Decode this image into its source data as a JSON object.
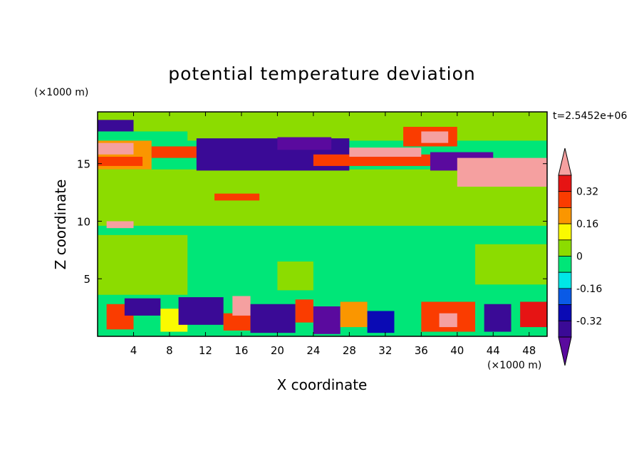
{
  "chart_data": {
    "type": "heatmap",
    "title": "potential temperature deviation",
    "xlabel": "X coordinate",
    "ylabel": "Z coordinate",
    "x_unit": "(×1000 m)",
    "y_unit": "(×1000 m)",
    "time_label": "t=2.5452e+06",
    "xlim": [
      0,
      50
    ],
    "ylim": [
      0,
      19.5
    ],
    "x_ticks": [
      4,
      8,
      12,
      16,
      20,
      24,
      28,
      32,
      36,
      40,
      44,
      48
    ],
    "y_ticks": [
      5,
      10,
      15
    ],
    "colorbar": {
      "tick_labels": [
        "0.32",
        "0.16",
        "0",
        "-0.16",
        "-0.32"
      ],
      "tick_values": [
        0.32,
        0.16,
        0,
        -0.16,
        -0.32
      ],
      "levels": [
        -0.4,
        -0.32,
        -0.24,
        -0.16,
        -0.08,
        0,
        0.08,
        0.16,
        0.24,
        0.32,
        0.4
      ],
      "colors": [
        "#5a0a9e",
        "#3a0a96",
        "#0a0ab4",
        "#0a5ae6",
        "#00e6e6",
        "#00e678",
        "#8cdc00",
        "#fafa00",
        "#fa9600",
        "#fa3c00",
        "#e61414",
        "#f5a0a0"
      ]
    },
    "field_regions": [
      {
        "x0": 0,
        "x1": 50,
        "y0": 0,
        "y1": 19.5,
        "value": -0.02
      },
      {
        "x0": 0,
        "x1": 50,
        "y0": 17.8,
        "y1": 19.5,
        "value": 0.05
      },
      {
        "x0": 10,
        "x1": 50,
        "y0": 17.0,
        "y1": 19.5,
        "value": 0.05
      },
      {
        "x0": 0,
        "x1": 50,
        "y0": 9.6,
        "y1": 14.5,
        "value": 0.05
      },
      {
        "x0": 0,
        "x1": 50,
        "y0": 9.2,
        "y1": 9.6,
        "value": -0.07
      },
      {
        "x0": 0,
        "x1": 10,
        "y0": 3.6,
        "y1": 8.8,
        "value": 0.05
      },
      {
        "x0": 20,
        "x1": 24,
        "y0": 4.0,
        "y1": 6.5,
        "value": 0.05
      },
      {
        "x0": 42,
        "x1": 50,
        "y0": 4.5,
        "y1": 8.0,
        "value": 0.05
      },
      {
        "x0": 0,
        "x1": 4,
        "y0": 17.8,
        "y1": 18.8,
        "value": -0.35
      },
      {
        "x0": 0,
        "x1": 6,
        "y0": 14.5,
        "y1": 17.0,
        "value": 0.2
      },
      {
        "x0": 0,
        "x1": 4,
        "y0": 15.8,
        "y1": 16.8,
        "value": 0.45
      },
      {
        "x0": 0,
        "x1": 5,
        "y0": 14.8,
        "y1": 15.6,
        "value": 0.3
      },
      {
        "x0": 6,
        "x1": 12,
        "y0": 15.5,
        "y1": 16.5,
        "value": 0.25
      },
      {
        "x0": 11,
        "x1": 28,
        "y0": 14.4,
        "y1": 17.2,
        "value": -0.34
      },
      {
        "x0": 20,
        "x1": 26,
        "y0": 16.2,
        "y1": 17.3,
        "value": -0.42
      },
      {
        "x0": 24,
        "x1": 38,
        "y0": 14.8,
        "y1": 15.8,
        "value": 0.3
      },
      {
        "x0": 28,
        "x1": 36,
        "y0": 15.6,
        "y1": 16.4,
        "value": 0.45
      },
      {
        "x0": 34,
        "x1": 40,
        "y0": 16.5,
        "y1": 18.2,
        "value": 0.3
      },
      {
        "x0": 36,
        "x1": 39,
        "y0": 16.8,
        "y1": 17.8,
        "value": 0.45
      },
      {
        "x0": 37,
        "x1": 44,
        "y0": 14.4,
        "y1": 16.0,
        "value": -0.42
      },
      {
        "x0": 40,
        "x1": 50,
        "y0": 13.0,
        "y1": 15.5,
        "value": 0.45
      },
      {
        "x0": 13,
        "x1": 18,
        "y0": 11.8,
        "y1": 12.4,
        "value": 0.3
      },
      {
        "x0": 1,
        "x1": 4,
        "y0": 9.4,
        "y1": 10.0,
        "value": 0.45
      },
      {
        "x0": 0,
        "x1": 50,
        "y0": 0,
        "y1": 3.6,
        "value": -0.06
      },
      {
        "x0": 1,
        "x1": 4,
        "y0": 0.6,
        "y1": 2.8,
        "value": 0.25
      },
      {
        "x0": 3,
        "x1": 7,
        "y0": 1.8,
        "y1": 3.3,
        "value": -0.35
      },
      {
        "x0": 7,
        "x1": 10,
        "y0": 0.4,
        "y1": 2.4,
        "value": 0.1
      },
      {
        "x0": 9,
        "x1": 14,
        "y0": 1.0,
        "y1": 3.4,
        "value": -0.36
      },
      {
        "x0": 14,
        "x1": 17,
        "y0": 0.5,
        "y1": 2.0,
        "value": 0.3
      },
      {
        "x0": 15,
        "x1": 17,
        "y0": 1.8,
        "y1": 3.5,
        "value": 0.45
      },
      {
        "x0": 17,
        "x1": 22,
        "y0": 0.3,
        "y1": 2.8,
        "value": -0.36
      },
      {
        "x0": 22,
        "x1": 24,
        "y0": 1.2,
        "y1": 3.2,
        "value": 0.25
      },
      {
        "x0": 24,
        "x1": 27,
        "y0": 0.2,
        "y1": 2.6,
        "value": -0.42
      },
      {
        "x0": 27,
        "x1": 30,
        "y0": 0.8,
        "y1": 3.0,
        "value": 0.2
      },
      {
        "x0": 30,
        "x1": 33,
        "y0": 0.3,
        "y1": 2.2,
        "value": -0.3
      },
      {
        "x0": 36,
        "x1": 42,
        "y0": 0.4,
        "y1": 3.0,
        "value": 0.3
      },
      {
        "x0": 38,
        "x1": 40,
        "y0": 0.8,
        "y1": 2.0,
        "value": 0.42
      },
      {
        "x0": 43,
        "x1": 46,
        "y0": 0.4,
        "y1": 2.8,
        "value": -0.36
      },
      {
        "x0": 47,
        "x1": 50,
        "y0": 0.8,
        "y1": 3.0,
        "value": 0.32
      }
    ]
  }
}
